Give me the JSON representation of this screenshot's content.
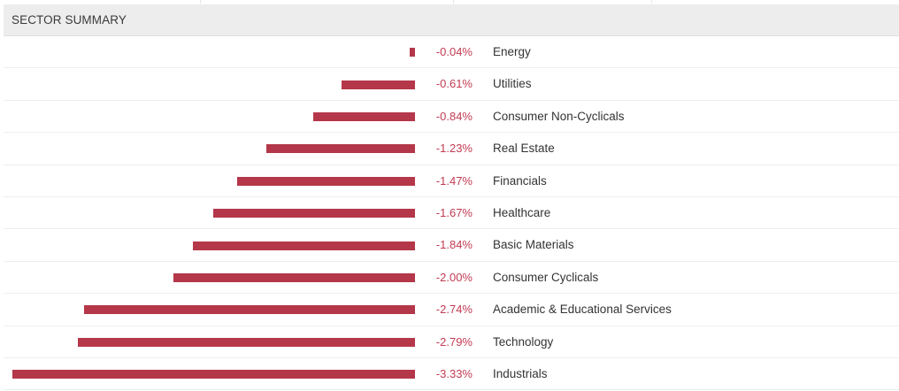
{
  "header": {
    "title": "SECTOR SUMMARY"
  },
  "colors": {
    "bar": "#b5374a",
    "value_text": "#c23b52",
    "header_bg": "#ededed"
  },
  "chart_data": {
    "type": "bar",
    "orientation": "horizontal",
    "title": "SECTOR SUMMARY",
    "xlabel": "",
    "ylabel": "",
    "categories": [
      "Energy",
      "Utilities",
      "Consumer Non-Cyclicals",
      "Real Estate",
      "Financials",
      "Healthcare",
      "Basic Materials",
      "Consumer Cyclicals",
      "Academic & Educational Services",
      "Technology",
      "Industrials"
    ],
    "values": [
      -0.04,
      -0.61,
      -0.84,
      -1.23,
      -1.47,
      -1.67,
      -1.84,
      -2.0,
      -2.74,
      -2.79,
      -3.33
    ],
    "value_labels": [
      "-0.04%",
      "-0.61%",
      "-0.84%",
      "-1.23%",
      "-1.47%",
      "-1.67%",
      "-1.84%",
      "-2.00%",
      "-2.74%",
      "-2.79%",
      "-3.33%"
    ],
    "xlim": [
      -3.33,
      0
    ],
    "grid": false,
    "legend": "none"
  }
}
